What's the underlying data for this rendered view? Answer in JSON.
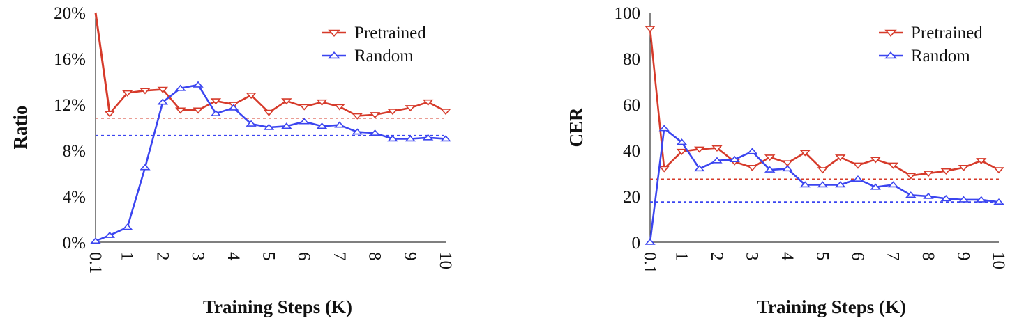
{
  "chart_data": [
    {
      "type": "line",
      "xlabel": "Training Steps (K)",
      "ylabel": "Ratio",
      "x_ticks": [
        "0.1",
        "1",
        "2",
        "3",
        "4",
        "5",
        "6",
        "7",
        "8",
        "9",
        "10"
      ],
      "x": [
        0.1,
        0.5,
        1,
        1.5,
        2,
        2.5,
        3,
        3.5,
        4,
        4.5,
        5,
        5.5,
        6,
        6.5,
        7,
        7.5,
        8,
        8.5,
        9,
        9.5,
        10
      ],
      "y_ticks": [
        "0%",
        "4%",
        "8%",
        "12%",
        "16%",
        "20%"
      ],
      "ylim": [
        0,
        20
      ],
      "legend_position": "top-right",
      "series": [
        {
          "name": "Pretrained",
          "color": "#d63a2a",
          "marker": "triangle-down",
          "values": [
            null,
            11.2,
            13.0,
            13.2,
            13.3,
            11.5,
            11.5,
            12.3,
            12.0,
            12.8,
            11.3,
            12.3,
            11.8,
            12.2,
            11.8,
            11.0,
            11.1,
            11.4,
            11.7,
            12.2,
            11.4
          ],
          "start_segment": {
            "from": [
              0.1,
              20
            ],
            "to": [
              0.5,
              11.2
            ]
          },
          "baseline": 10.8
        },
        {
          "name": "Random",
          "color": "#3b45f0",
          "marker": "triangle-up",
          "values": [
            0.1,
            0.6,
            1.3,
            6.5,
            12.2,
            13.4,
            13.7,
            11.2,
            11.7,
            10.3,
            10.0,
            10.1,
            10.5,
            10.1,
            10.2,
            9.6,
            9.5,
            9.0,
            9.0,
            9.1,
            9.0
          ],
          "baseline": 9.3
        }
      ]
    },
    {
      "type": "line",
      "xlabel": "Training Steps (K)",
      "ylabel": "CER",
      "x_ticks": [
        "0.1",
        "1",
        "2",
        "3",
        "4",
        "5",
        "6",
        "7",
        "8",
        "9",
        "10"
      ],
      "x": [
        0.1,
        0.5,
        1,
        1.5,
        2,
        2.5,
        3,
        3.5,
        4,
        4.5,
        5,
        5.5,
        6,
        6.5,
        7,
        7.5,
        8,
        8.5,
        9,
        9.5,
        10
      ],
      "y_ticks": [
        "0",
        "20",
        "40",
        "60",
        "80",
        "100"
      ],
      "ylim": [
        0,
        100
      ],
      "legend_position": "top-right",
      "series": [
        {
          "name": "Pretrained",
          "color": "#d63a2a",
          "marker": "triangle-down",
          "values": [
            93,
            32,
            39.5,
            40.5,
            41,
            35,
            32.5,
            37,
            34.5,
            39,
            31.5,
            37,
            33.5,
            36,
            33.5,
            29,
            30,
            31,
            32.5,
            35.5,
            31.5
          ],
          "baseline": 27.5
        },
        {
          "name": "Random",
          "color": "#3b45f0",
          "marker": "triangle-up",
          "values": [
            0,
            49.5,
            43.5,
            32,
            35.5,
            36,
            39.5,
            31.5,
            32,
            25,
            25,
            25,
            27.5,
            24,
            25,
            20.5,
            20,
            19,
            18.5,
            18.5,
            17.5
          ],
          "baseline": 17.5
        }
      ]
    }
  ]
}
